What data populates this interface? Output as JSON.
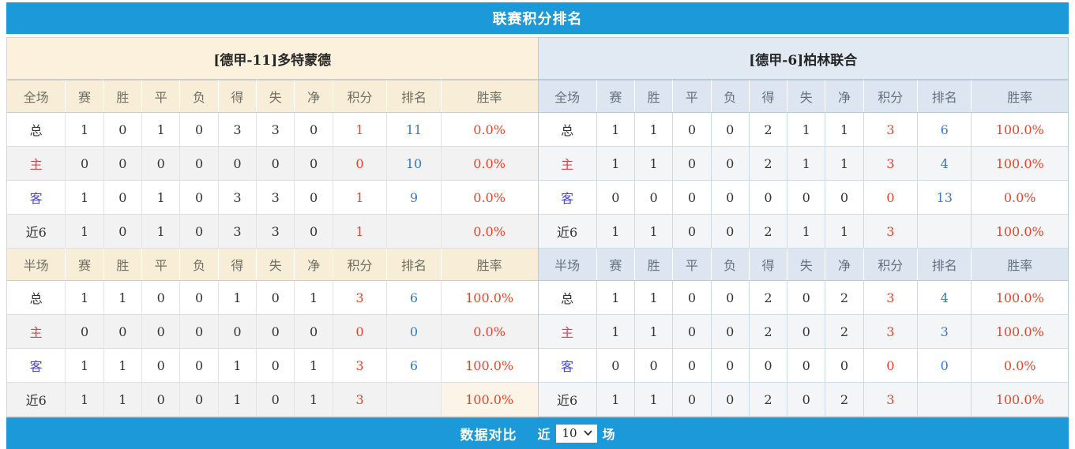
{
  "title": "联赛积分排名",
  "colors": {
    "accent": "#1b99d8",
    "value-red": "#e8442c",
    "rank-blue": "#3679be",
    "home-red": "#d94350",
    "away-blue": "#4945d2",
    "left-band": "#fbf1dc",
    "left-header": "#f8eed8",
    "right-band": "#e1eaf2",
    "right-header": "#dde6f0"
  },
  "tables": {
    "left": {
      "team": "[德甲-11]多特蒙德",
      "sections": [
        {
          "header": [
            "全场",
            "赛",
            "胜",
            "平",
            "负",
            "得",
            "失",
            "净",
            "积分",
            "排名",
            "胜率"
          ],
          "rows": [
            [
              "总",
              "1",
              "0",
              "1",
              "0",
              "3",
              "3",
              "0",
              "1",
              "11",
              "0.0%"
            ],
            [
              "主",
              "0",
              "0",
              "0",
              "0",
              "0",
              "0",
              "0",
              "0",
              "10",
              "0.0%"
            ],
            [
              "客",
              "1",
              "0",
              "1",
              "0",
              "3",
              "3",
              "0",
              "1",
              "9",
              "0.0%"
            ],
            [
              "近6",
              "1",
              "0",
              "1",
              "0",
              "3",
              "3",
              "0",
              "1",
              "",
              "0.0%"
            ]
          ]
        },
        {
          "header": [
            "半场",
            "赛",
            "胜",
            "平",
            "负",
            "得",
            "失",
            "净",
            "积分",
            "排名",
            "胜率"
          ],
          "rows": [
            [
              "总",
              "1",
              "1",
              "0",
              "0",
              "1",
              "0",
              "1",
              "3",
              "6",
              "100.0%"
            ],
            [
              "主",
              "0",
              "0",
              "0",
              "0",
              "0",
              "0",
              "0",
              "0",
              "0",
              "0.0%"
            ],
            [
              "客",
              "1",
              "1",
              "0",
              "0",
              "1",
              "0",
              "1",
              "3",
              "6",
              "100.0%"
            ],
            [
              "近6",
              "1",
              "1",
              "0",
              "0",
              "1",
              "0",
              "1",
              "3",
              "",
              "100.0%"
            ]
          ]
        }
      ]
    },
    "right": {
      "team": "[德甲-6]柏林联合",
      "sections": [
        {
          "header": [
            "全场",
            "赛",
            "胜",
            "平",
            "负",
            "得",
            "失",
            "净",
            "积分",
            "排名",
            "胜率"
          ],
          "rows": [
            [
              "总",
              "1",
              "1",
              "0",
              "0",
              "2",
              "1",
              "1",
              "3",
              "6",
              "100.0%"
            ],
            [
              "主",
              "1",
              "1",
              "0",
              "0",
              "2",
              "1",
              "1",
              "3",
              "4",
              "100.0%"
            ],
            [
              "客",
              "0",
              "0",
              "0",
              "0",
              "0",
              "0",
              "0",
              "0",
              "13",
              "0.0%"
            ],
            [
              "近6",
              "1",
              "1",
              "0",
              "0",
              "2",
              "1",
              "1",
              "3",
              "",
              "100.0%"
            ]
          ]
        },
        {
          "header": [
            "半场",
            "赛",
            "胜",
            "平",
            "负",
            "得",
            "失",
            "净",
            "积分",
            "排名",
            "胜率"
          ],
          "rows": [
            [
              "总",
              "1",
              "1",
              "0",
              "0",
              "2",
              "0",
              "2",
              "3",
              "4",
              "100.0%"
            ],
            [
              "主",
              "1",
              "1",
              "0",
              "0",
              "2",
              "0",
              "2",
              "3",
              "3",
              "100.0%"
            ],
            [
              "客",
              "0",
              "0",
              "0",
              "0",
              "0",
              "0",
              "0",
              "0",
              "0",
              "0.0%"
            ],
            [
              "近6",
              "1",
              "1",
              "0",
              "0",
              "2",
              "0",
              "2",
              "3",
              "",
              "100.0%"
            ]
          ]
        }
      ]
    }
  },
  "footer": {
    "compare_label": "数据对比",
    "recent_label": "近",
    "selected_count": "10",
    "unit_label": "场"
  }
}
